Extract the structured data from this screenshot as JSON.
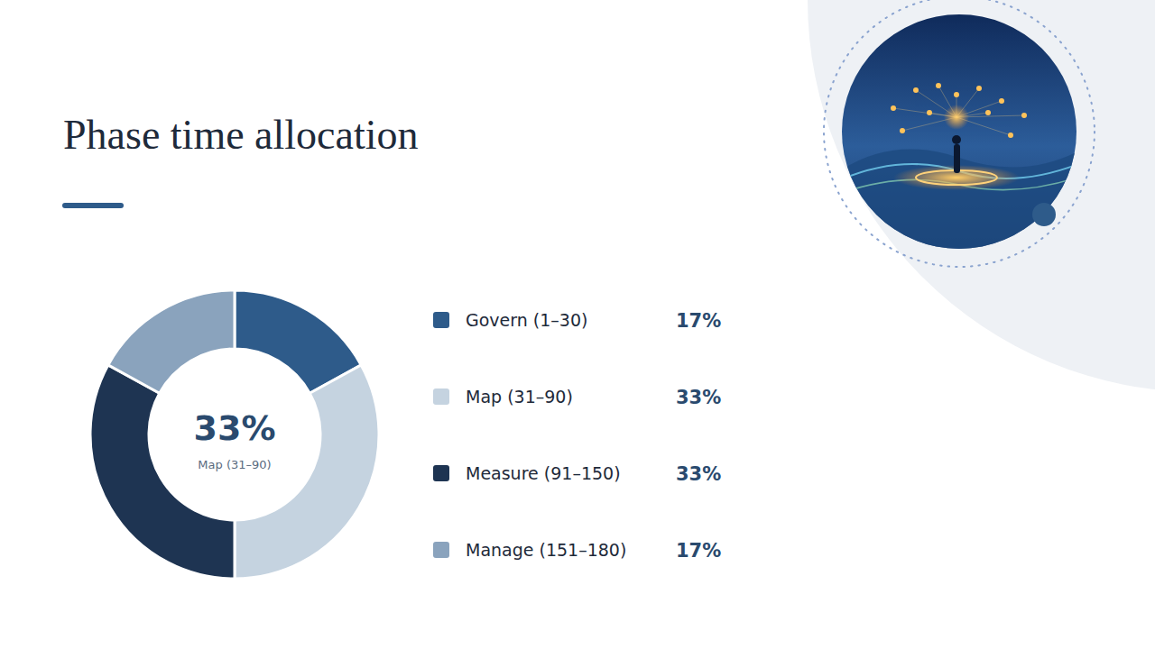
{
  "chart_data": {
    "type": "pie",
    "title": "Phase time allocation",
    "categories": [
      "Govern (1–30)",
      "Map (31–90)",
      "Measure (91–150)",
      "Manage (151–180)"
    ],
    "values": [
      17,
      33,
      33,
      17
    ],
    "value_labels": [
      "17%",
      "33%",
      "33%",
      "17%"
    ],
    "colors": [
      "#2e5b8a",
      "#c5d3e0",
      "#1e3452",
      "#8aa3bd"
    ],
    "annotations": [
      "33%",
      "Map (31–90)"
    ]
  }
}
